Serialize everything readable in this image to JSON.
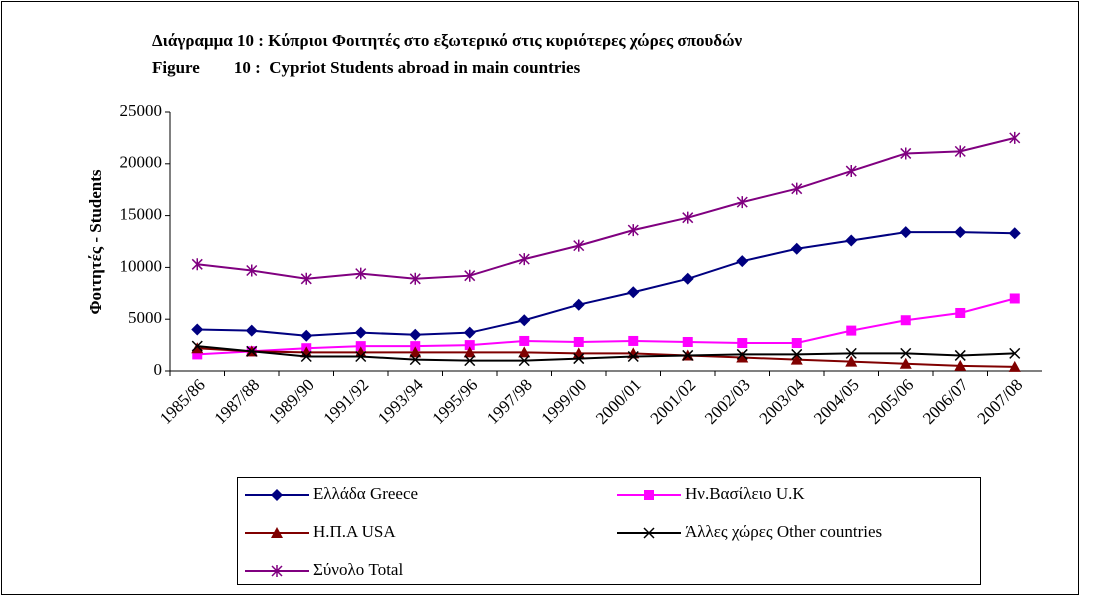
{
  "chart_data": {
    "type": "line",
    "title": "Διάγραμμα 10 :  Κύπριοι Φοιτητές στο εξωτερικό στις κυριότερες χώρες σπουδών",
    "subtitle": "Figure        10 :  Cypriot Students abroad in main countries",
    "y_label": "Φοιτητές - Students",
    "categories": [
      "1985/86",
      "1987/88",
      "1989/90",
      "1991/92",
      "1993/94",
      "1995/96",
      "1997/98",
      "1999/00",
      "2000/01",
      "2001/02",
      "2002/03",
      "2003/04",
      "2004/05",
      "2005/06",
      "2006/07",
      "2007/08"
    ],
    "series": [
      {
        "name": "Ελλάδα Greece",
        "color": "#000080",
        "marker": "diamond",
        "values": [
          4000,
          3900,
          3400,
          3700,
          3500,
          3700,
          4900,
          6400,
          7600,
          8900,
          10600,
          11800,
          12600,
          13400,
          13400,
          13300
        ]
      },
      {
        "name": "Ην.Βασίλειο U.K",
        "color": "#ff00ff",
        "marker": "square",
        "values": [
          1600,
          1900,
          2200,
          2400,
          2400,
          2500,
          2900,
          2800,
          2900,
          2800,
          2700,
          2700,
          3900,
          4900,
          5600,
          7000
        ]
      },
      {
        "name": "Η.Π.Α USA",
        "color": "#800000",
        "marker": "triangle",
        "values": [
          2200,
          1900,
          1800,
          1800,
          1800,
          1800,
          1800,
          1700,
          1700,
          1500,
          1300,
          1100,
          900,
          700,
          500,
          400
        ]
      },
      {
        "name": "Άλλες χώρες Other countries",
        "color": "#000000",
        "marker": "x",
        "values": [
          2400,
          1900,
          1400,
          1400,
          1100,
          1000,
          1000,
          1200,
          1400,
          1500,
          1600,
          1600,
          1700,
          1700,
          1500,
          1700
        ]
      },
      {
        "name": "Σύνολο Total",
        "color": "#800080",
        "marker": "star",
        "values": [
          10300,
          9700,
          8900,
          9400,
          8900,
          9200,
          10800,
          12100,
          13600,
          14800,
          16300,
          17600,
          19300,
          21000,
          21200,
          22500
        ]
      }
    ],
    "ylim": [
      0,
      25000
    ],
    "yticks": [
      0,
      5000,
      10000,
      15000,
      20000,
      25000
    ],
    "grid": false
  }
}
